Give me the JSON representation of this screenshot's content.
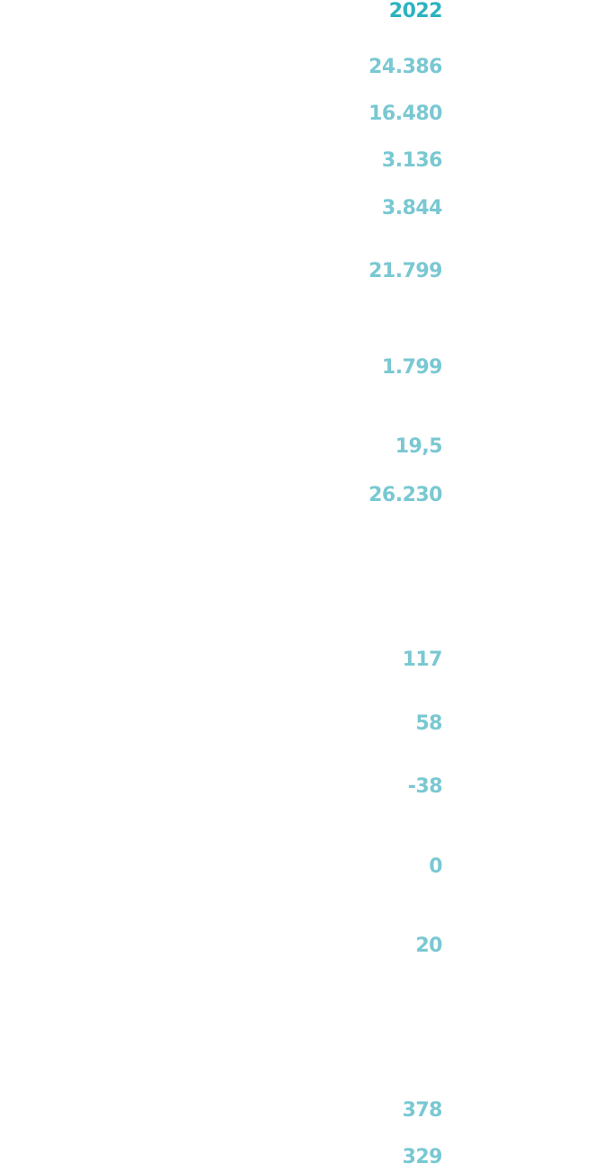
{
  "colors": {
    "year": "#2bb3c0",
    "value": "#79c8d2"
  },
  "column": {
    "year_label": "2022",
    "values": [
      "24.386",
      "16.480",
      "3.136",
      "3.844",
      "21.799",
      "1.799",
      "19,5",
      "26.230",
      "117",
      "58",
      "-38",
      "0",
      "20",
      "378",
      "329"
    ]
  }
}
